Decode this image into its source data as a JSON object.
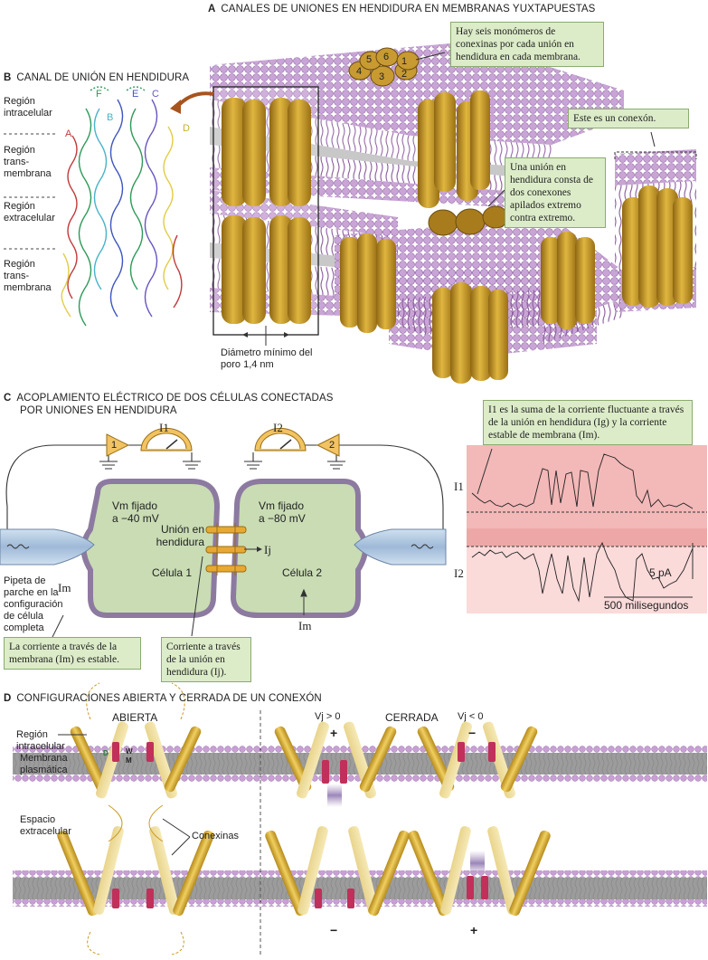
{
  "section_a": {
    "letter": "A",
    "title": "CANALES DE UNIONES EN HENDIDURA EN MEMBRANAS YUXTAPUESTAS",
    "note_monomers": "Hay seis monómeros de conexinas por cada unión en hendidura en cada membrana.",
    "note_connexon": "Este es un conexón.",
    "note_junction": "Una unión en hendidura consta de dos conexones apilados extremo contra extremo.",
    "pore_label": "Diámetro mínimo del poro 1,4 nm",
    "monomer_numbers": [
      "1",
      "2",
      "3",
      "4",
      "5",
      "6"
    ]
  },
  "section_b": {
    "letter": "B",
    "title": "CANAL DE UNIÓN EN HENDIDURA",
    "regions": [
      "Región intracelular",
      "Región trans-membrana",
      "Región extracelular",
      "Región trans-membrana"
    ],
    "chain_labels": [
      "A",
      "B",
      "C",
      "D",
      "E",
      "F"
    ]
  },
  "section_c": {
    "letter": "C",
    "title_line1": "ACOPLAMIENTO ELÉCTRICO DE DOS CÉLULAS CONECTADAS",
    "title_line2": "POR UNIONES EN HENDIDURA",
    "i1": "I1",
    "i2": "I2",
    "amp1": "1",
    "amp2": "2",
    "cell1_vm": "Vm fijado",
    "cell1_value": "a −40 mV",
    "cell2_vm": "Vm fijado",
    "cell2_value": "a −80 mV",
    "junction_label": "Unión en hendidura",
    "ij": "Ij",
    "cell1": "Célula 1",
    "cell2": "Célula 2",
    "im": "Im",
    "pipette": "Pipeta de parche en la configuración de célula completa",
    "note_membrane": "La corriente a través de la membrana (Im) es estable.",
    "note_junction": "Corriente a través de la unión en hendidura (Ij).",
    "note_sum": "I1 es la suma de la corriente fluctuante a través de la unión en hendidura (Ig) y la corriente estable de membrana (Im).",
    "trace_i1": "I1",
    "trace_i2": "I2",
    "scale_current": "5 pA",
    "scale_time": "500 milisegundos"
  },
  "section_d": {
    "letter": "D",
    "title": "CONFIGURACIONES ABIERTA Y CERRADA DE UN CONEXÓN",
    "open": "ABIERTA",
    "closed": "CERRADA",
    "region_intracellular": "Región intracelular",
    "membrane": "Membrana plasmática",
    "extracellular": "Espacio extracelular",
    "connexins": "Conexinas",
    "vj_pos": "Vj > 0",
    "vj_neg": "Vj < 0",
    "plus": "+",
    "minus": "−",
    "residues": [
      "M",
      "W",
      "D"
    ]
  },
  "colors": {
    "lipid_head": "#c9a4d6",
    "lipid_tail": "#7a4a8c",
    "protein": "#c99a2a",
    "note_bg": "#dcecc8",
    "cell_fill": "#c9dcb4",
    "trace_bg": "#f3b8b8"
  }
}
